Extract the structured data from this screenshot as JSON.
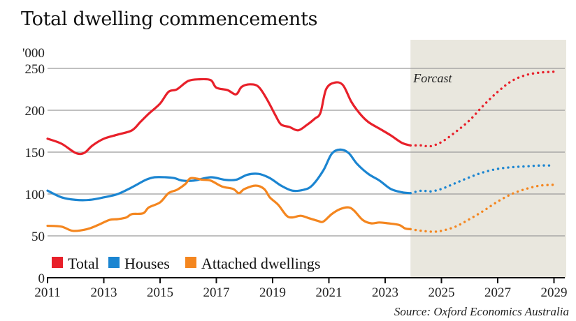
{
  "title": "Total dwelling commencements",
  "chart_data": {
    "type": "line",
    "title": "Total dwelling commencements",
    "ylabel": "'000",
    "xlabel": "",
    "xlim": [
      2011,
      2029.3
    ],
    "ylim": [
      0,
      260
    ],
    "yticks": [
      0,
      50,
      100,
      150,
      200,
      250
    ],
    "xticks": [
      2011,
      2013,
      2015,
      2017,
      2019,
      2021,
      2023,
      2025,
      2027,
      2029
    ],
    "grid": true,
    "legend_position": "bottom-left",
    "forecast_region": {
      "start": 2023.9,
      "label": "Forcast"
    },
    "source": "Source: Oxford Economics Australia",
    "series": [
      {
        "name": "Total",
        "color": "#e8202a",
        "actual": [
          [
            2011,
            166
          ],
          [
            2011.5,
            160
          ],
          [
            2012,
            149
          ],
          [
            2012.3,
            149
          ],
          [
            2012.6,
            158
          ],
          [
            2013,
            166
          ],
          [
            2013.5,
            171
          ],
          [
            2014,
            176
          ],
          [
            2014.3,
            186
          ],
          [
            2014.6,
            196
          ],
          [
            2015,
            208
          ],
          [
            2015.3,
            222
          ],
          [
            2015.6,
            225
          ],
          [
            2016,
            235
          ],
          [
            2016.4,
            237
          ],
          [
            2016.8,
            236
          ],
          [
            2017,
            227
          ],
          [
            2017.4,
            224
          ],
          [
            2017.7,
            219
          ],
          [
            2017.9,
            228
          ],
          [
            2018.2,
            231
          ],
          [
            2018.5,
            228
          ],
          [
            2018.8,
            213
          ],
          [
            2019.1,
            194
          ],
          [
            2019.3,
            183
          ],
          [
            2019.6,
            180
          ],
          [
            2019.9,
            176
          ],
          [
            2020.2,
            182
          ],
          [
            2020.5,
            190
          ],
          [
            2020.7,
            197
          ],
          [
            2020.9,
            225
          ],
          [
            2021.2,
            233
          ],
          [
            2021.5,
            230
          ],
          [
            2021.8,
            210
          ],
          [
            2022.1,
            196
          ],
          [
            2022.4,
            186
          ],
          [
            2022.8,
            178
          ],
          [
            2023.2,
            170
          ],
          [
            2023.6,
            161
          ],
          [
            2023.9,
            158
          ]
        ],
        "forecast": [
          [
            2023.9,
            158
          ],
          [
            2024.3,
            158
          ],
          [
            2024.6,
            157
          ],
          [
            2025,
            162
          ],
          [
            2025.5,
            174
          ],
          [
            2026,
            188
          ],
          [
            2026.5,
            206
          ],
          [
            2027,
            222
          ],
          [
            2027.5,
            235
          ],
          [
            2028,
            242
          ],
          [
            2028.5,
            245
          ],
          [
            2029,
            246
          ]
        ]
      },
      {
        "name": "Houses",
        "color": "#1b85d1",
        "actual": [
          [
            2011,
            104
          ],
          [
            2011.5,
            96
          ],
          [
            2012,
            93
          ],
          [
            2012.5,
            93
          ],
          [
            2013,
            96
          ],
          [
            2013.5,
            100
          ],
          [
            2014,
            108
          ],
          [
            2014.5,
            117
          ],
          [
            2014.8,
            120
          ],
          [
            2015.2,
            120
          ],
          [
            2015.5,
            119
          ],
          [
            2015.8,
            116
          ],
          [
            2016.2,
            116
          ],
          [
            2016.8,
            120
          ],
          [
            2017.3,
            117
          ],
          [
            2017.7,
            117
          ],
          [
            2018.1,
            123
          ],
          [
            2018.5,
            124
          ],
          [
            2018.9,
            119
          ],
          [
            2019.3,
            110
          ],
          [
            2019.7,
            104
          ],
          [
            2020.1,
            105
          ],
          [
            2020.4,
            110
          ],
          [
            2020.8,
            128
          ],
          [
            2021.1,
            148
          ],
          [
            2021.4,
            153
          ],
          [
            2021.7,
            149
          ],
          [
            2022,
            136
          ],
          [
            2022.4,
            124
          ],
          [
            2022.8,
            116
          ],
          [
            2023.2,
            106
          ],
          [
            2023.6,
            102
          ],
          [
            2023.9,
            101
          ]
        ],
        "forecast": [
          [
            2023.9,
            101
          ],
          [
            2024.3,
            104
          ],
          [
            2024.6,
            103
          ],
          [
            2025,
            106
          ],
          [
            2025.5,
            113
          ],
          [
            2026,
            120
          ],
          [
            2026.5,
            126
          ],
          [
            2027,
            130
          ],
          [
            2027.5,
            132
          ],
          [
            2028,
            133
          ],
          [
            2028.5,
            134
          ],
          [
            2029,
            134
          ]
        ]
      },
      {
        "name": "Attached dwellings",
        "color": "#f4861f",
        "actual": [
          [
            2011,
            62
          ],
          [
            2011.5,
            61
          ],
          [
            2011.9,
            56
          ],
          [
            2012.4,
            58
          ],
          [
            2012.8,
            63
          ],
          [
            2013.2,
            69
          ],
          [
            2013.5,
            70
          ],
          [
            2013.8,
            72
          ],
          [
            2014,
            76
          ],
          [
            2014.4,
            77
          ],
          [
            2014.6,
            84
          ],
          [
            2015,
            90
          ],
          [
            2015.3,
            101
          ],
          [
            2015.6,
            105
          ],
          [
            2015.9,
            112
          ],
          [
            2016.1,
            119
          ],
          [
            2016.5,
            117
          ],
          [
            2016.8,
            116
          ],
          [
            2017.2,
            109
          ],
          [
            2017.6,
            106
          ],
          [
            2017.8,
            101
          ],
          [
            2018,
            106
          ],
          [
            2018.4,
            110
          ],
          [
            2018.7,
            106
          ],
          [
            2018.9,
            96
          ],
          [
            2019.2,
            87
          ],
          [
            2019.5,
            74
          ],
          [
            2019.7,
            72
          ],
          [
            2020,
            74
          ],
          [
            2020.3,
            71
          ],
          [
            2020.6,
            68
          ],
          [
            2020.8,
            67
          ],
          [
            2021.1,
            76
          ],
          [
            2021.4,
            82
          ],
          [
            2021.7,
            84
          ],
          [
            2021.9,
            80
          ],
          [
            2022.2,
            69
          ],
          [
            2022.5,
            65
          ],
          [
            2022.8,
            66
          ],
          [
            2023.1,
            65
          ],
          [
            2023.5,
            63
          ],
          [
            2023.7,
            59
          ],
          [
            2023.9,
            58
          ]
        ],
        "forecast": [
          [
            2023.9,
            58
          ],
          [
            2024.3,
            56
          ],
          [
            2024.7,
            55
          ],
          [
            2025,
            56
          ],
          [
            2025.5,
            61
          ],
          [
            2026,
            70
          ],
          [
            2026.5,
            80
          ],
          [
            2027,
            91
          ],
          [
            2027.5,
            100
          ],
          [
            2028,
            106
          ],
          [
            2028.5,
            110
          ],
          [
            2029,
            111
          ]
        ]
      }
    ]
  }
}
